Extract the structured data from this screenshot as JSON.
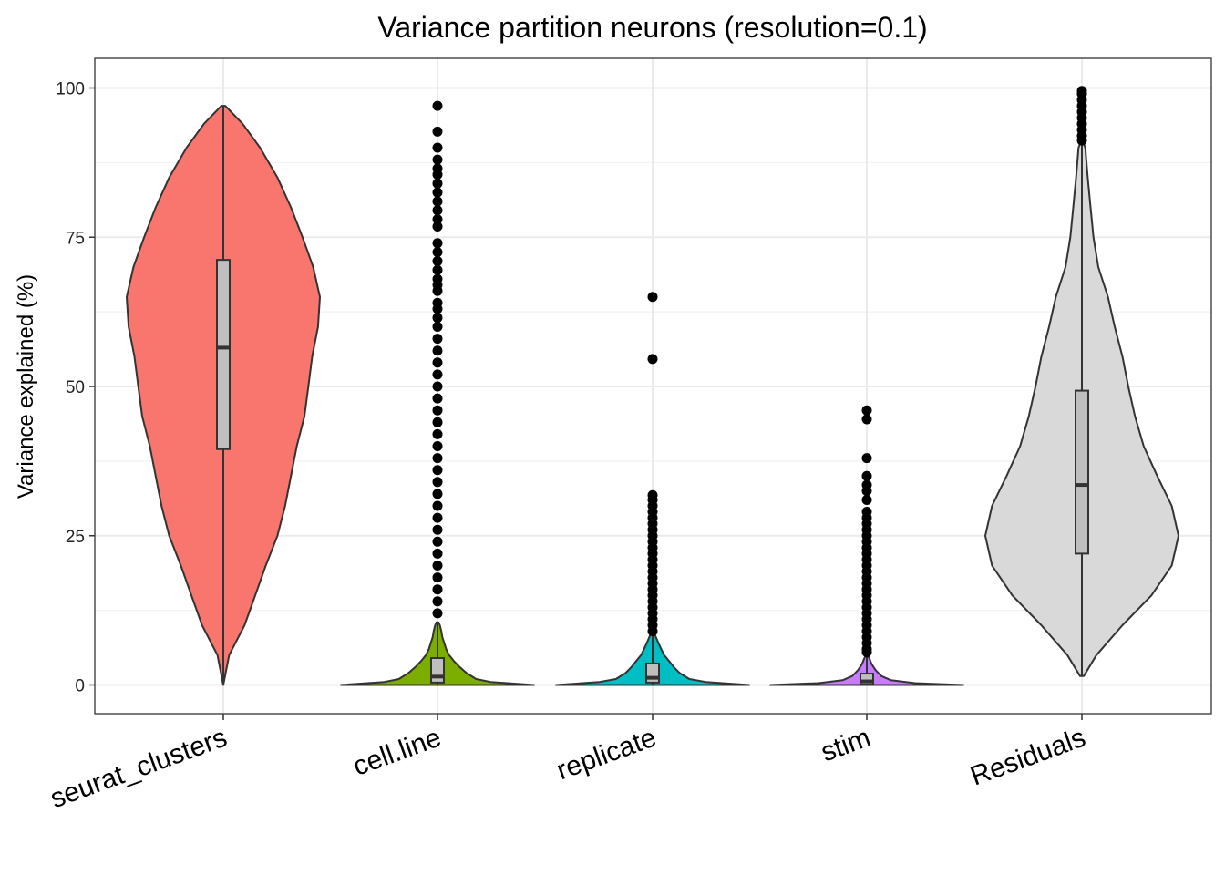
{
  "chart_data": {
    "type": "violin",
    "title": "Variance partition neurons (resolution=0.1)",
    "xlabel": "",
    "ylabel": "Variance explained (%)",
    "ylim": [
      -5,
      105
    ],
    "yticks": [
      0,
      25,
      50,
      75,
      100
    ],
    "grid": true,
    "legend": "none",
    "categories": [
      "seurat_clusters",
      "cell.line",
      "replicate",
      "stim",
      "Residuals"
    ],
    "series": [
      {
        "category": "seurat_clusters",
        "color": "#F8766D",
        "min": 0,
        "max": 97,
        "box": {
          "q1": 39.5,
          "median": 56.5,
          "q3": 71.2,
          "whisker_low": 0,
          "whisker_high": 97
        },
        "density": [
          [
            0,
            0
          ],
          [
            5,
            0.06
          ],
          [
            10,
            0.22
          ],
          [
            15,
            0.33
          ],
          [
            20,
            0.44
          ],
          [
            25,
            0.56
          ],
          [
            30,
            0.64
          ],
          [
            35,
            0.7
          ],
          [
            40,
            0.76
          ],
          [
            45,
            0.84
          ],
          [
            50,
            0.88
          ],
          [
            55,
            0.92
          ],
          [
            60,
            0.98
          ],
          [
            65,
            1.0
          ],
          [
            70,
            0.93
          ],
          [
            75,
            0.82
          ],
          [
            80,
            0.7
          ],
          [
            85,
            0.56
          ],
          [
            90,
            0.38
          ],
          [
            94,
            0.2
          ],
          [
            97,
            0.02
          ]
        ],
        "outliers": []
      },
      {
        "category": "cell.line",
        "color": "#7CAE00",
        "min": 0,
        "max": 10.5,
        "box": {
          "q1": 0.4,
          "median": 1.4,
          "q3": 4.5,
          "whisker_low": 0,
          "whisker_high": 10.5
        },
        "density": [
          [
            0,
            1.0
          ],
          [
            0.5,
            0.55
          ],
          [
            1,
            0.4
          ],
          [
            2,
            0.3
          ],
          [
            3,
            0.23
          ],
          [
            4,
            0.17
          ],
          [
            5,
            0.12
          ],
          [
            6,
            0.09
          ],
          [
            7,
            0.07
          ],
          [
            8,
            0.05
          ],
          [
            9,
            0.04
          ],
          [
            10,
            0.025
          ],
          [
            10.5,
            0.01
          ]
        ],
        "outliers": [
          12,
          14,
          16,
          18,
          20,
          22,
          24,
          26,
          28,
          30,
          32,
          34,
          36,
          38,
          40,
          42,
          44,
          46,
          48,
          50,
          52,
          54,
          56,
          58,
          60,
          61.5,
          63,
          64,
          66,
          67,
          68,
          69.5,
          71,
          72.5,
          74,
          76.8,
          78,
          79.5,
          81,
          82.5,
          84,
          85.5,
          86.5,
          88,
          90,
          92.7,
          97
        ]
      },
      {
        "category": "replicate",
        "color": "#00BFC4",
        "min": 0,
        "max": 8.5,
        "box": {
          "q1": 0.4,
          "median": 1.2,
          "q3": 3.6,
          "whisker_low": 0,
          "whisker_high": 8.5
        },
        "density": [
          [
            0,
            1.0
          ],
          [
            0.5,
            0.55
          ],
          [
            1,
            0.38
          ],
          [
            2,
            0.28
          ],
          [
            3,
            0.22
          ],
          [
            4,
            0.17
          ],
          [
            5,
            0.12
          ],
          [
            6,
            0.09
          ],
          [
            7,
            0.06
          ],
          [
            8,
            0.035
          ],
          [
            8.5,
            0.02
          ]
        ],
        "outliers": [
          9,
          10,
          11,
          12,
          13,
          14,
          15,
          16,
          17,
          18,
          19,
          20,
          21,
          22,
          23,
          24,
          25,
          26,
          27,
          28,
          29,
          30,
          31,
          31.8,
          54.6,
          65
        ]
      },
      {
        "category": "stim",
        "color": "#C77CFF",
        "min": 0,
        "max": 5,
        "box": {
          "q1": 0.1,
          "median": 0.6,
          "q3": 1.9,
          "whisker_low": 0,
          "whisker_high": 4.8
        },
        "density": [
          [
            0,
            1.0
          ],
          [
            0.3,
            0.5
          ],
          [
            0.8,
            0.25
          ],
          [
            1.5,
            0.15
          ],
          [
            2.5,
            0.09
          ],
          [
            3.5,
            0.05
          ],
          [
            4.5,
            0.025
          ],
          [
            5,
            0.01
          ]
        ],
        "outliers": [
          5.5,
          6,
          7,
          8,
          9,
          10,
          11,
          12,
          13,
          14,
          15,
          16,
          17,
          18,
          19,
          20,
          21,
          22,
          23,
          24,
          25,
          26,
          27,
          28,
          29,
          31,
          32.5,
          33.5,
          35,
          38,
          44.5,
          46
        ]
      },
      {
        "category": "Residuals",
        "color": "#D9D9D9",
        "min": 1.5,
        "max": 91,
        "box": {
          "q1": 22,
          "median": 33.5,
          "q3": 49.3,
          "whisker_low": 1.5,
          "whisker_high": 91
        },
        "density": [
          [
            1.5,
            0.02
          ],
          [
            5,
            0.15
          ],
          [
            10,
            0.42
          ],
          [
            15,
            0.72
          ],
          [
            20,
            0.93
          ],
          [
            25,
            1.0
          ],
          [
            30,
            0.93
          ],
          [
            35,
            0.78
          ],
          [
            40,
            0.64
          ],
          [
            45,
            0.55
          ],
          [
            50,
            0.48
          ],
          [
            55,
            0.42
          ],
          [
            60,
            0.34
          ],
          [
            65,
            0.27
          ],
          [
            70,
            0.17
          ],
          [
            75,
            0.12
          ],
          [
            80,
            0.09
          ],
          [
            85,
            0.06
          ],
          [
            90,
            0.035
          ],
          [
            91,
            0.01
          ]
        ],
        "outliers": [
          91.2,
          92,
          93,
          94,
          95,
          96,
          97,
          98,
          99,
          99.5
        ]
      }
    ]
  }
}
